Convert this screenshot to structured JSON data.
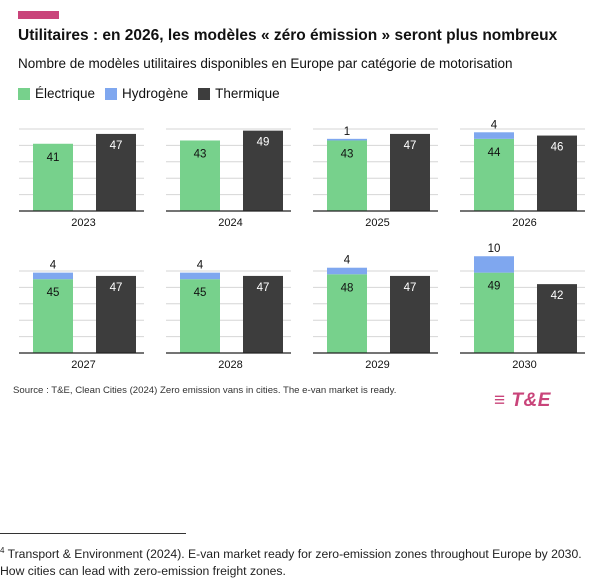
{
  "header": {
    "title": "Utilitaires : en 2026, les modèles « zéro émission » seront plus nombreux",
    "subtitle": "Nombre de modèles utilitaires disponibles en Europe par catégorie de motorisation",
    "accent_color": "#c9447a"
  },
  "legend": [
    {
      "label": "Électrique",
      "color": "#77d18c"
    },
    {
      "label": "Hydrogène",
      "color": "#7fa7ef"
    },
    {
      "label": "Thermique",
      "color": "#3d3d3d"
    }
  ],
  "chart_data": {
    "type": "bar",
    "stacked": true,
    "title": "Utilitaires : en 2026, les modèles « zéro émission » seront plus nombreux",
    "subtitle": "Nombre de modèles utilitaires disponibles en Europe par catégorie de motorisation",
    "grid": true,
    "ylim": [
      0,
      50
    ],
    "panels": [
      {
        "year": "2023",
        "electrique": 41,
        "hydrogene": 0,
        "hydrogene_label": "",
        "thermique": 47
      },
      {
        "year": "2024",
        "electrique": 43,
        "hydrogene": 0,
        "hydrogene_label": "",
        "thermique": 49
      },
      {
        "year": "2025",
        "electrique": 43,
        "hydrogene": 1,
        "hydrogene_label": "1",
        "thermique": 47
      },
      {
        "year": "2026",
        "electrique": 44,
        "hydrogene": 4,
        "hydrogene_label": "4",
        "thermique": 46
      },
      {
        "year": "2027",
        "electrique": 45,
        "hydrogene": 4,
        "hydrogene_label": "4",
        "thermique": 47
      },
      {
        "year": "2028",
        "electrique": 45,
        "hydrogene": 4,
        "hydrogene_label": "4",
        "thermique": 47
      },
      {
        "year": "2029",
        "electrique": 48,
        "hydrogene": 4,
        "hydrogene_label": "4",
        "thermique": 47
      },
      {
        "year": "2030",
        "electrique": 49,
        "hydrogene": 10,
        "hydrogene_label": "10",
        "thermique": 42
      }
    ]
  },
  "source": "Source : T&E, Clean Cities (2024) Zero emission vans in cities. The e-van market is ready.",
  "logo": {
    "text": "T&E",
    "color": "#c9447a"
  },
  "footnote": {
    "marker": "4",
    "text": " Transport & Environment (2024). E-van market ready for zero-emission zones throughout Europe by 2030. How cities can lead with zero-emission freight zones."
  }
}
